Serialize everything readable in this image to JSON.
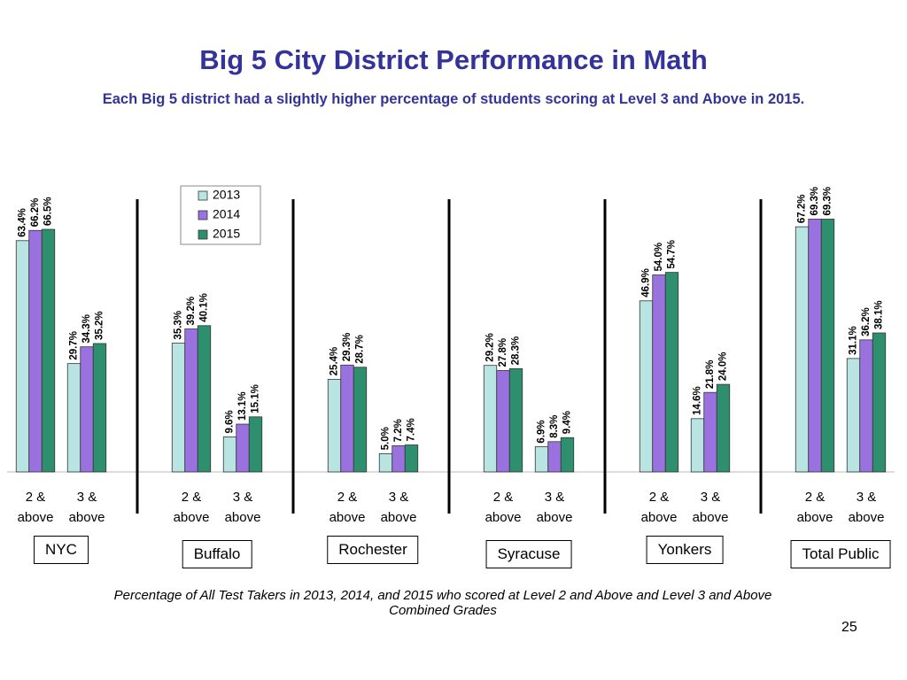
{
  "chart_data": {
    "type": "bar",
    "title": "Big 5 City District Performance in Math",
    "subtitle": "Each Big 5 district had a slightly higher percentage of students scoring at Level 3 and Above in 2015.",
    "categories": [
      "2 & above",
      "3 & above",
      "2 & above",
      "3 & above",
      "2 & above",
      "3 & above",
      "2 & above",
      "3 & above",
      "2 & above",
      "3 & above",
      "2 & above",
      "3 & above"
    ],
    "districts": [
      "NYC",
      "Buffalo",
      "Rochester",
      "Syracuse",
      "Yonkers",
      "Total Public"
    ],
    "series": [
      {
        "name": "2013",
        "color": "#b8e4e2",
        "values": [
          63.4,
          29.7,
          35.3,
          9.6,
          25.4,
          5.0,
          29.2,
          6.9,
          46.9,
          14.6,
          67.2,
          31.1
        ],
        "value_labels": [
          "63.4%",
          "29.7%",
          "35.3%",
          "9.6%",
          "25.4%",
          "5.0%",
          "29.2%",
          "6.9%",
          "46.9%",
          "14.6%",
          "67.2%",
          "31.1%"
        ]
      },
      {
        "name": "2014",
        "color": "#9a72e0",
        "values": [
          66.2,
          34.3,
          39.2,
          13.1,
          29.3,
          7.2,
          27.8,
          8.3,
          54.0,
          21.8,
          69.3,
          36.2
        ],
        "value_labels": [
          "66.2%",
          "34.3%",
          "39.2%",
          "13.1%",
          "29.3%",
          "7.2%",
          "27.8%",
          "8.3%",
          "54.0%",
          "21.8%",
          "69.3%",
          "36.2%"
        ]
      },
      {
        "name": "2015",
        "color": "#2e8f6f",
        "values": [
          66.5,
          35.2,
          40.1,
          15.1,
          28.7,
          7.4,
          28.3,
          9.4,
          54.7,
          24.0,
          69.3,
          38.1
        ],
        "value_labels": [
          "66.5%",
          "35.2%",
          "40.1%",
          "15.1%",
          "28.7%",
          "7.4%",
          "28.3%",
          "9.4%",
          "54.7%",
          "24.0%",
          "69.3%",
          "38.1%"
        ]
      }
    ],
    "footnote": "Percentage of All Test Takers in 2013, 2014, and 2015 who scored at Level 2 and Above and Level 3 and Above Combined Grades",
    "page_number": "25"
  }
}
